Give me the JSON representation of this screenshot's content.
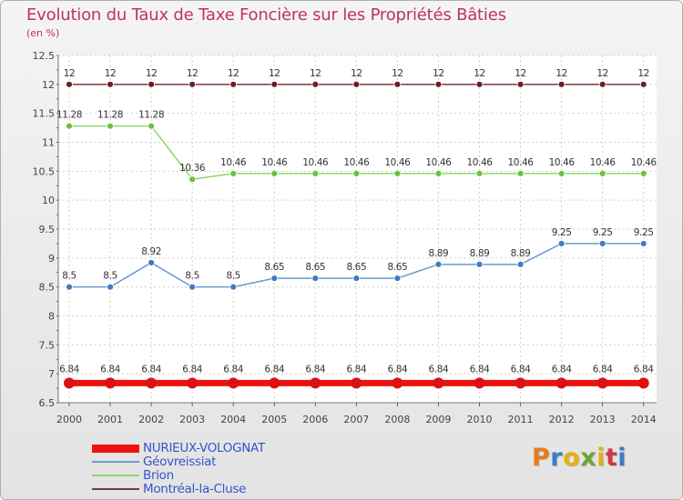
{
  "title": "Evolution du Taux de Taxe Foncière sur les Propriétés Bâties",
  "subtitle": "(en %)",
  "logo": {
    "text": "Proxiti",
    "colors": [
      "#e87a1e",
      "#3b7cc8",
      "#e6b012",
      "#6aa834",
      "#e6b012",
      "#d2344a",
      "#3b7cc8"
    ]
  },
  "chart_data": {
    "type": "line",
    "title": "Evolution du Taux de Taxe Foncière sur les Propriétés Bâties",
    "ylabel": "(en %)",
    "xlabel": "",
    "x": [
      "2000",
      "2001",
      "2002",
      "2003",
      "2004",
      "2005",
      "2006",
      "2007",
      "2008",
      "2009",
      "2010",
      "2011",
      "2012",
      "2013",
      "2014"
    ],
    "ylim": [
      6.5,
      12.5
    ],
    "yticks": [
      6.5,
      7,
      7.5,
      8,
      8.5,
      9,
      9.5,
      10,
      10.5,
      11,
      11.5,
      12,
      12.5
    ],
    "ytick_labels": [
      "6.5",
      "7",
      "7.5",
      "8",
      "8.5",
      "9",
      "9.5",
      "10",
      "10.5",
      "11",
      "11.5",
      "12",
      "12.5"
    ],
    "grid": true,
    "legend": "bottom-left",
    "series": [
      {
        "name": "Montréal-la-Cluse",
        "color": "#7a3a3a",
        "marker": "#6a1f24",
        "width": 1.5,
        "r": 3.5,
        "values": [
          12,
          12,
          12,
          12,
          12,
          12,
          12,
          12,
          12,
          12,
          12,
          12,
          12,
          12,
          12
        ],
        "labels": [
          "12",
          "12",
          "12",
          "12",
          "12",
          "12",
          "12",
          "12",
          "12",
          "12",
          "12",
          "12",
          "12",
          "12",
          "12"
        ]
      },
      {
        "name": "Brion",
        "color": "#8ed66a",
        "marker": "#6cc040",
        "width": 1.5,
        "r": 3.5,
        "values": [
          11.28,
          11.28,
          11.28,
          10.36,
          10.46,
          10.46,
          10.46,
          10.46,
          10.46,
          10.46,
          10.46,
          10.46,
          10.46,
          10.46,
          10.46
        ],
        "labels": [
          "11.28",
          "11.28",
          "11.28",
          "10.36",
          "10.46",
          "10.46",
          "10.46",
          "10.46",
          "10.46",
          "10.46",
          "10.46",
          "10.46",
          "10.46",
          "10.46",
          "10.46"
        ]
      },
      {
        "name": "Géovreissiat",
        "color": "#6a9ad0",
        "marker": "#3f7bc2",
        "width": 1.5,
        "r": 3.5,
        "values": [
          8.5,
          8.5,
          8.92,
          8.5,
          8.5,
          8.65,
          8.65,
          8.65,
          8.65,
          8.89,
          8.89,
          8.89,
          9.25,
          9.25,
          9.25
        ],
        "labels": [
          "8.5",
          "8.5",
          "8.92",
          "8.5",
          "8.5",
          "8.65",
          "8.65",
          "8.65",
          "8.65",
          "8.89",
          "8.89",
          "8.89",
          "9.25",
          "9.25",
          "9.25"
        ]
      },
      {
        "name": "NURIEUX-VOLOGNAT",
        "color": "#ee1111",
        "marker": "#dd1111",
        "width": 7,
        "r": 6,
        "values": [
          6.84,
          6.84,
          6.84,
          6.84,
          6.84,
          6.84,
          6.84,
          6.84,
          6.84,
          6.84,
          6.84,
          6.84,
          6.84,
          6.84,
          6.84
        ],
        "labels": [
          "6.84",
          "6.84",
          "6.84",
          "6.84",
          "6.84",
          "6.84",
          "6.84",
          "6.84",
          "6.84",
          "6.84",
          "6.84",
          "6.84",
          "6.84",
          "6.84",
          "6.84"
        ]
      }
    ]
  },
  "legend": [
    {
      "label": "NURIEUX-VOLOGNAT",
      "color": "#ee1111",
      "thickness": "thick"
    },
    {
      "label": "Géovreissiat",
      "color": "#6a9ad0",
      "thickness": "thin"
    },
    {
      "label": "Brion",
      "color": "#8ed66a",
      "thickness": "thin"
    },
    {
      "label": "Montréal-la-Cluse",
      "color": "#7a3a3a",
      "thickness": "thin"
    }
  ]
}
